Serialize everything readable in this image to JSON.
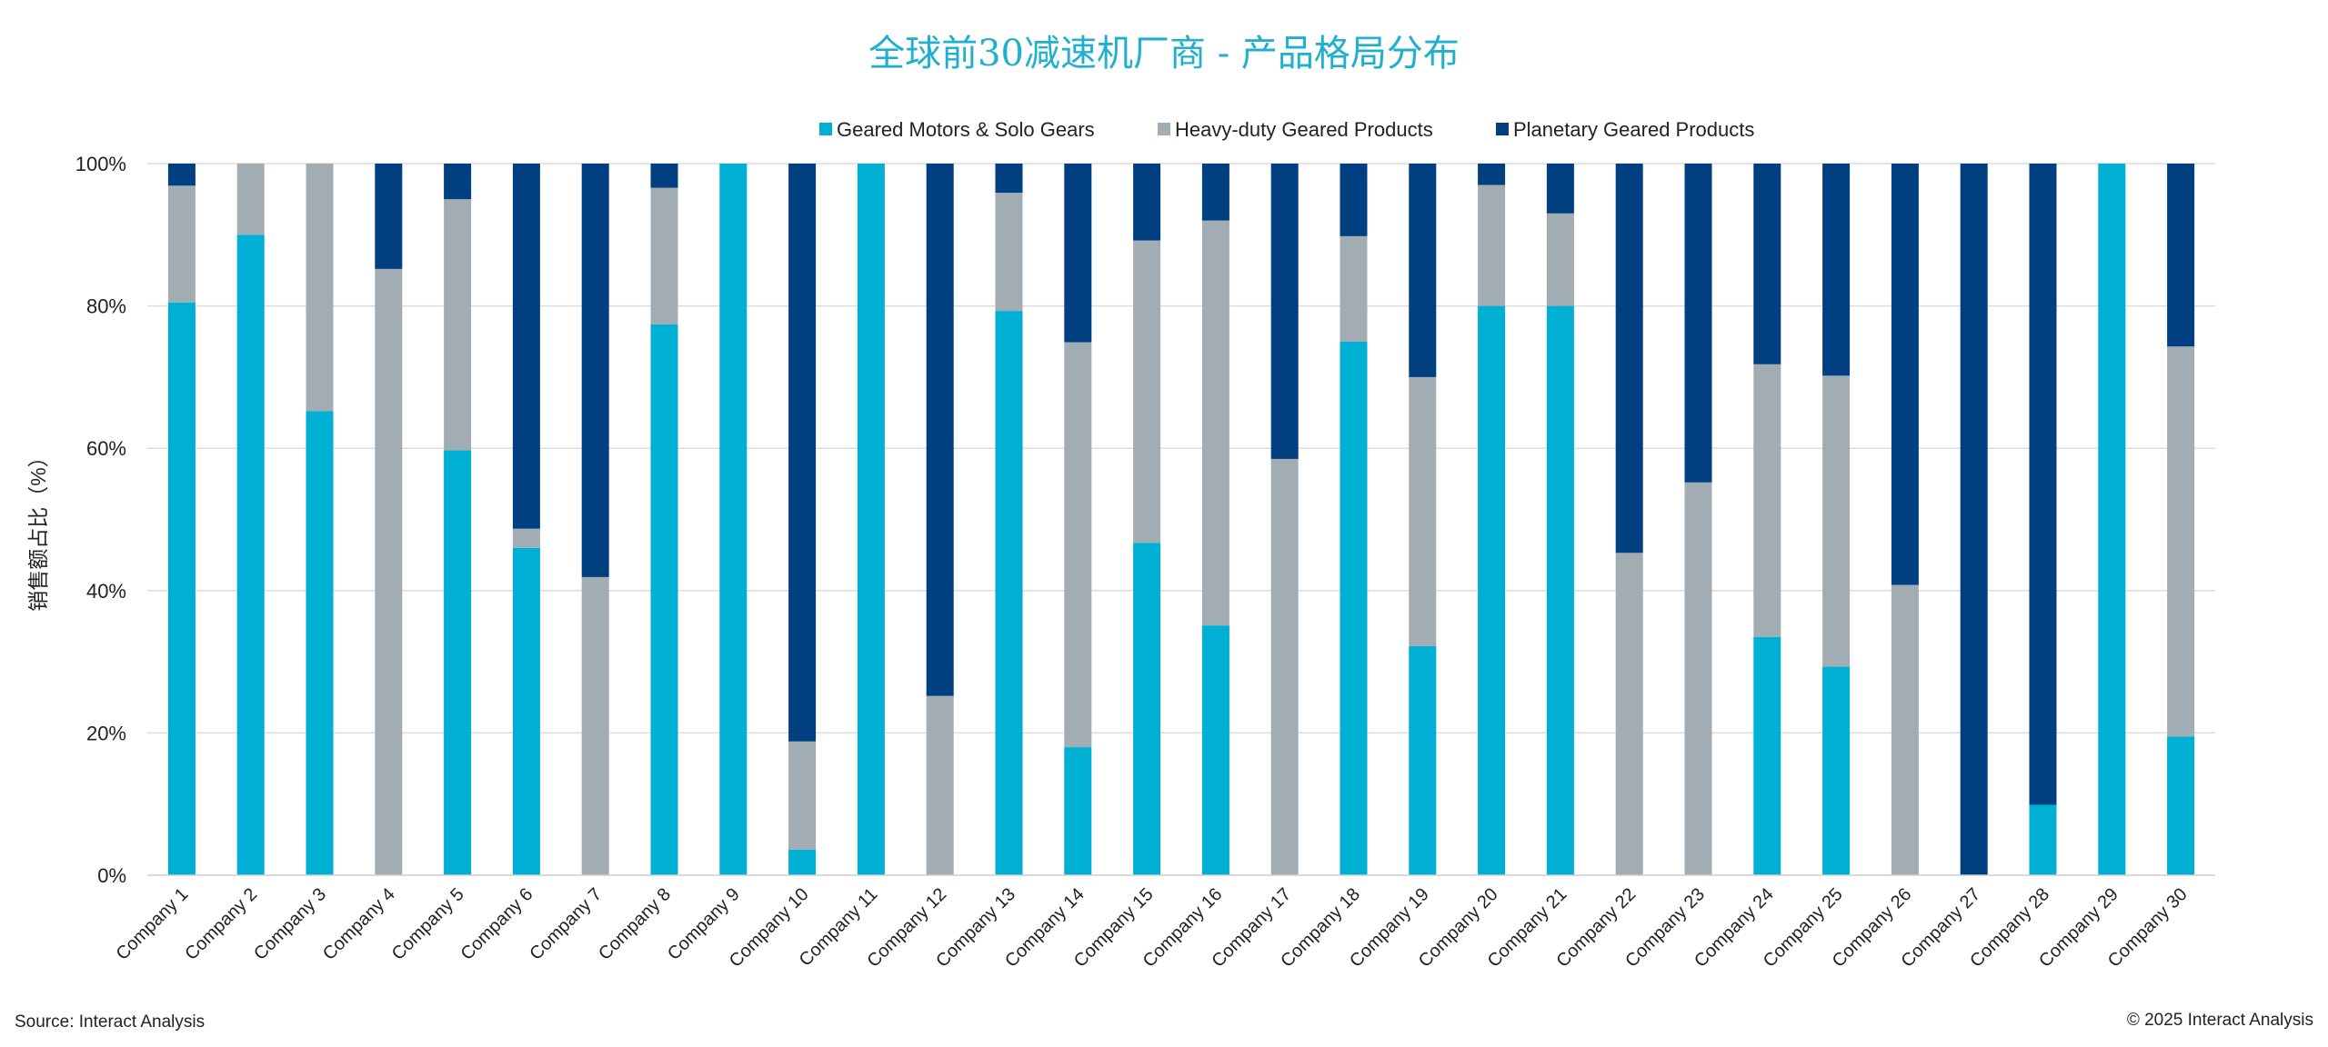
{
  "chart_data": {
    "type": "bar",
    "stacked": true,
    "title": "全球前30减速机厂商 - 产品格局分布",
    "xlabel": "",
    "ylabel": "销售额占比（%）",
    "ylim": [
      0,
      100
    ],
    "yticks": [
      "0%",
      "20%",
      "40%",
      "60%",
      "80%",
      "100%"
    ],
    "grid": true,
    "legend_position": "top-center",
    "categories": [
      "Company 1",
      "Company 2",
      "Company 3",
      "Company 4",
      "Company 5",
      "Company 6",
      "Company 7",
      "Company 8",
      "Company 9",
      "Company 10",
      "Company 11",
      "Company 12",
      "Company 13",
      "Company 14",
      "Company 15",
      "Company 16",
      "Company 17",
      "Company 18",
      "Company 19",
      "Company 20",
      "Company 21",
      "Company 22",
      "Company 23",
      "Company 24",
      "Company 25",
      "Company 26",
      "Company 27",
      "Company 28",
      "Company 29",
      "Company 30"
    ],
    "series": [
      {
        "name": "Geared Motors & Solo Gears",
        "color": "#00afd4",
        "values": [
          80.5,
          90,
          65.2,
          0,
          59.7,
          46,
          0,
          77.4,
          100,
          3.6,
          100,
          0,
          79.3,
          18,
          46.7,
          35.1,
          0,
          75,
          32.2,
          80,
          80,
          0,
          0,
          33.5,
          29.3,
          0,
          0,
          9.9,
          100,
          19.5
        ]
      },
      {
        "name": "Heavy-duty Geared Products",
        "color": "#a2acb3",
        "values": [
          16.4,
          10,
          34.8,
          85.2,
          35.3,
          2.7,
          41.9,
          19.2,
          0,
          15.2,
          0,
          25.2,
          16.6,
          56.9,
          42.5,
          56.9,
          58.5,
          14.8,
          37.8,
          17,
          13,
          45.3,
          55.2,
          38.3,
          40.9,
          40.8,
          0,
          0,
          0,
          54.8
        ]
      },
      {
        "name": "Planetary Geared Products",
        "color": "#003f80",
        "values": [
          3.1,
          0,
          0,
          14.8,
          5,
          51.3,
          58.1,
          3.4,
          0,
          81.2,
          0,
          74.8,
          4.1,
          25.1,
          10.8,
          8,
          41.5,
          10.2,
          30,
          3,
          7,
          54.7,
          44.8,
          28.2,
          29.8,
          59.2,
          100,
          90.1,
          0,
          25.7
        ]
      }
    ]
  },
  "footer": {
    "source": "Source: Interact Analysis",
    "copyright": "© 2025 Interact Analysis"
  }
}
